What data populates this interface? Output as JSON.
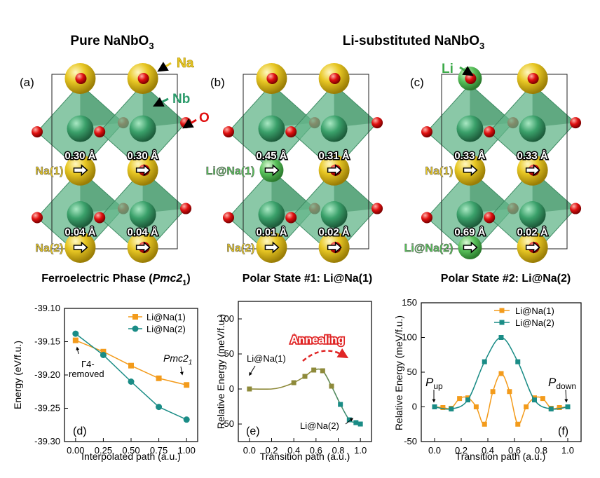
{
  "headers": {
    "pure": [
      "Pure NaNbO",
      "3"
    ],
    "li": [
      "Li-substituted NaNbO",
      "3"
    ]
  },
  "panels": {
    "a": "(a)",
    "b": "(b)",
    "c": "(c)",
    "d": "(d)",
    "e": "(e)",
    "f": "(f)"
  },
  "atom_labels": {
    "na": "Na",
    "nb": "Nb",
    "o": "O",
    "li": "Li"
  },
  "structures": [
    {
      "site1": "Na(1)",
      "site2": "Na(2)",
      "top": [
        "0.30 Å",
        "0.30 Å"
      ],
      "bottom": [
        "0.04 Å",
        "0.04 Å"
      ],
      "caption": [
        "Ferroelectric Phase (",
        "Pmc",
        "2",
        "1",
        ")"
      ]
    },
    {
      "site1": "Li@Na(1)",
      "site2": "Na(2)",
      "top": [
        "0.45 Å",
        "0.31 Å"
      ],
      "bottom": [
        "0.01 Å",
        "0.02 Å"
      ],
      "caption": [
        "Polar State #1: Li@Na(1)"
      ]
    },
    {
      "site1": "Na(1)",
      "site2": "Li@Na(2)",
      "top": [
        "0.33 Å",
        "0.33 Å"
      ],
      "bottom": [
        "0.69 Å",
        "0.02 Å"
      ],
      "caption": [
        "Polar State #2: Li@Na(2)"
      ]
    }
  ],
  "colors": {
    "orange": "#f39b1b",
    "teal": "#1a8c86",
    "olive": "#8e8a3a",
    "na": "#e8c724",
    "nb_oct": "#63b58a",
    "o": "#e01010",
    "li": "#58c05a",
    "annealing": "#e02626",
    "li_label": "#3daa4a",
    "nb_label": "#2a9a6a"
  },
  "chart_data": [
    {
      "type": "line",
      "xlabel": "Interpolated path (a.u.)",
      "ylabel": "Energy (eV/f.u.)",
      "xlim": [
        -0.1,
        1.1
      ],
      "ylim": [
        -39.3,
        -39.1
      ],
      "xticks": [
        "0.00",
        "0.25",
        "0.50",
        "0.75",
        "1.00"
      ],
      "yticks": [
        "-39.10",
        "-39.15",
        "-39.20",
        "-39.25",
        "-39.30"
      ],
      "legend_position": "top-right",
      "series": [
        {
          "name": "Li@Na(1)",
          "marker": "square",
          "color": "#f39b1b",
          "x": [
            0,
            0.25,
            0.5,
            0.75,
            1.0
          ],
          "y": [
            -39.148,
            -39.165,
            -39.186,
            -39.205,
            -39.215
          ]
        },
        {
          "name": "Li@Na(2)",
          "marker": "circle",
          "color": "#1a8c86",
          "x": [
            0,
            0.25,
            0.5,
            0.75,
            1.0
          ],
          "y": [
            -39.138,
            -39.17,
            -39.21,
            -39.248,
            -39.267
          ]
        }
      ],
      "annotations": [
        {
          "text": [
            "Γ4-",
            "removed"
          ]
        },
        {
          "text": [
            "Pmc",
            "2",
            "1"
          ]
        }
      ]
    },
    {
      "type": "line",
      "xlabel": "Transition path (a.u.)",
      "ylabel": "Relative Energy (meV/f.u.)",
      "xlim": [
        -0.1,
        1.1
      ],
      "ylim": [
        -75,
        125
      ],
      "xticks": [
        "0.0",
        "0.2",
        "0.4",
        "0.6",
        "0.8",
        "1.0"
      ],
      "yticks": [
        "100",
        "50",
        "0",
        "-50"
      ],
      "series": [
        {
          "name": "",
          "marker": "square",
          "color_from": "#8e8a3a",
          "color_to": "#1a8c86",
          "x": [
            0,
            0.4,
            0.5,
            0.58,
            0.66,
            0.74,
            0.82,
            0.9,
            0.96,
            1.0
          ],
          "y": [
            0,
            9,
            18,
            27,
            26,
            4,
            -22,
            -44,
            -48,
            -50
          ]
        }
      ],
      "annotations": [
        {
          "text": "Li@Na(1)"
        },
        {
          "text": "Li@Na(2)"
        },
        {
          "text": "Annealing"
        }
      ]
    },
    {
      "type": "line",
      "xlabel": "Transition path (a.u.)",
      "ylabel": "Relative Energy (meV/f.u.)",
      "xlim": [
        -0.1,
        1.1
      ],
      "ylim": [
        -50,
        150
      ],
      "xticks": [
        "0.0",
        "0.2",
        "0.4",
        "0.6",
        "0.8",
        "1.0"
      ],
      "yticks": [
        "150",
        "100",
        "50",
        "0",
        "-50"
      ],
      "legend_position": "top-right",
      "series": [
        {
          "name": "Li@Na(1)",
          "marker": "square",
          "color": "#f39b1b",
          "x": [
            0,
            0.0625,
            0.125,
            0.1875,
            0.25,
            0.3125,
            0.375,
            0.4375,
            0.5,
            0.5625,
            0.625,
            0.6875,
            0.75,
            0.8125,
            0.875,
            0.9375,
            1.0
          ],
          "y": [
            0,
            -1,
            -2,
            12,
            13,
            0,
            -25,
            22,
            48,
            22,
            -25,
            0,
            13,
            12,
            -2,
            -1,
            0
          ]
        },
        {
          "name": "Li@Na(2)",
          "marker": "square",
          "color": "#1a8c86",
          "x": [
            0,
            0.125,
            0.25,
            0.375,
            0.5,
            0.625,
            0.75,
            0.875,
            1.0
          ],
          "y": [
            0,
            -3,
            10,
            65,
            100,
            65,
            10,
            -3,
            0
          ]
        }
      ],
      "annotations": [
        {
          "text": [
            "P",
            "up"
          ]
        },
        {
          "text": [
            "P",
            "down"
          ]
        }
      ]
    }
  ]
}
